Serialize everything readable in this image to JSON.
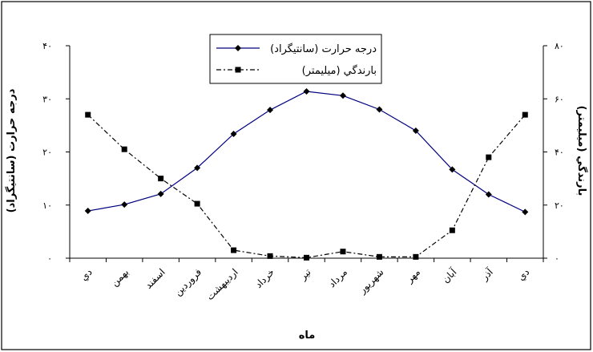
{
  "chart_data": {
    "type": "line",
    "categories": [
      "دي",
      "بهمن",
      "اسفند",
      "فروردين",
      "ارديبهشت",
      "خرداد",
      "تير",
      "مرداد",
      "شهريور",
      "مهر",
      "آبان",
      "آذر",
      "دي"
    ],
    "series": [
      {
        "name": "درجه حرارت (سانتيگراد)",
        "axis": "left",
        "values": [
          8.9,
          10.1,
          12.1,
          17.0,
          23.4,
          27.9,
          31.4,
          30.6,
          28.0,
          24.0,
          16.7,
          12.0,
          8.7
        ],
        "color": "#000080",
        "line_style": "solid",
        "marker": "diamond"
      },
      {
        "name": "بارندگي (ميليمتر)",
        "axis": "right",
        "values": [
          54.0,
          41.0,
          30.0,
          20.5,
          3.0,
          0.8,
          0.2,
          2.5,
          0.5,
          0.5,
          10.5,
          38.0,
          54.0
        ],
        "color": "#000000",
        "line_style": "dash-dot",
        "marker": "square"
      }
    ],
    "xlabel": "ماه",
    "ylabel_left": "درجه حرارت (سانتيگراد)",
    "ylabel_right": "بارندگي (ميليمتر)",
    "ylim_left": [
      0,
      40
    ],
    "ylim_right": [
      0,
      80
    ],
    "yticks_left": [
      "٠",
      "١٠",
      "٢٠",
      "٣٠",
      "۴٠"
    ],
    "yticks_right": [
      "٠",
      "٢٠",
      "۴٠",
      "۶٠",
      "٨٠"
    ],
    "grid": false,
    "legend_position": "top-center"
  }
}
